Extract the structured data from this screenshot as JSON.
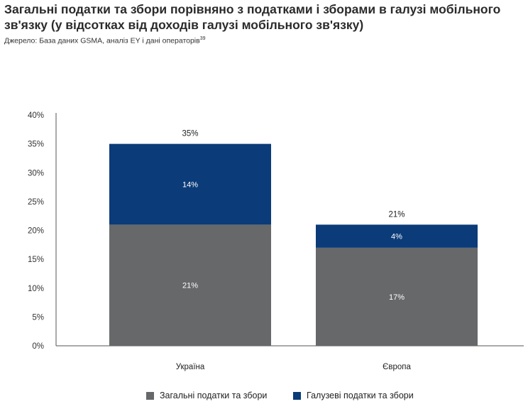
{
  "title": "Загальні податки та збори порівняно з податками і зборами в галузі мобільного зв'язку (у відсотках від доходів галузі мобільного зв'язку)",
  "source": {
    "text": "Джерело: База даних GSMA, аналіз EY і дані операторів",
    "footnote": "39"
  },
  "chart_data": {
    "type": "bar",
    "stacked": true,
    "categories": [
      "Україна",
      "Європа"
    ],
    "series": [
      {
        "name": "Загальні податки та збори",
        "values": [
          21,
          17
        ],
        "labels": [
          "21%",
          "17%"
        ],
        "color": "#666869"
      },
      {
        "name": "Галузеві податки та збори",
        "values": [
          14,
          4
        ],
        "labels": [
          "14%",
          "4%"
        ],
        "color": "#0b3b78"
      }
    ],
    "totals": [
      35,
      21
    ],
    "total_labels": [
      "35%",
      "21%"
    ],
    "ylim": [
      0,
      40
    ],
    "yticks": [
      "0%",
      "5%",
      "10%",
      "15%",
      "20%",
      "25%",
      "30%",
      "35%",
      "40%"
    ],
    "ytick_values": [
      0,
      5,
      10,
      15,
      20,
      25,
      30,
      35,
      40
    ],
    "grid": false,
    "legend_position": "bottom"
  }
}
